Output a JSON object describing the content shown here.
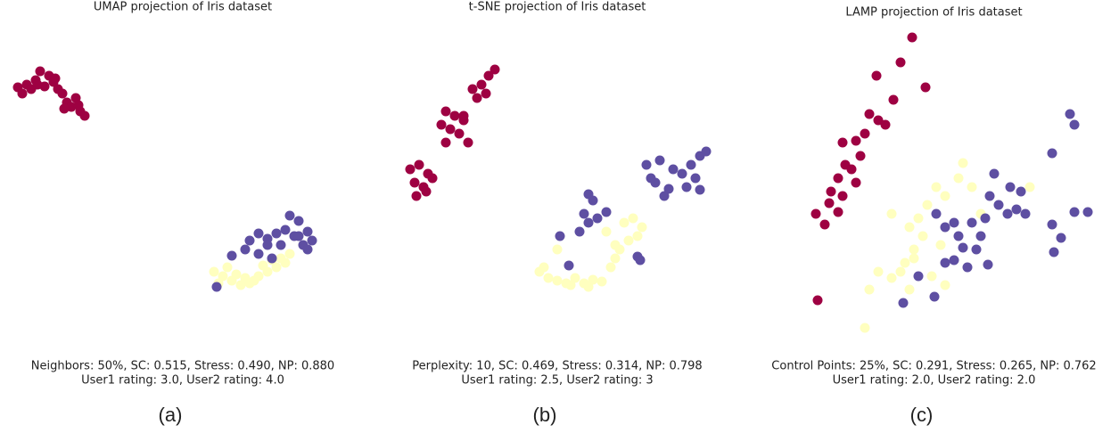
{
  "chart_data": [
    {
      "type": "scatter",
      "title": "UMAP projection of Iris dataset",
      "caption": [
        "Neighbors: 50%, SC: 0.515, Stress: 0.490, NP: 0.880",
        "User1 rating: 3.0, User2 rating: 4.0"
      ],
      "label": "(a)",
      "xlim": [
        0,
        410
      ],
      "ylim": [
        400,
        0
      ],
      "series": [
        {
          "color": "#9e0142",
          "x": [
            20,
            30,
            40,
            45,
            55,
            60,
            65,
            70,
            75,
            80,
            85,
            90,
            95,
            35,
            50,
            25,
            72,
            88,
            62,
            42
          ],
          "y": [
            98,
            95,
            90,
            80,
            85,
            92,
            100,
            105,
            115,
            120,
            110,
            125,
            130,
            100,
            97,
            105,
            122,
            118,
            88,
            95
          ]
        },
        {
          "color": "#ffffbf",
          "x": [
            240,
            250,
            260,
            270,
            280,
            290,
            300,
            310,
            320,
            325,
            315,
            255,
            265,
            285,
            245,
            295,
            305,
            275
          ],
          "y": [
            305,
            310,
            315,
            320,
            318,
            310,
            305,
            300,
            295,
            285,
            290,
            300,
            308,
            315,
            318,
            298,
            292,
            312
          ]
        },
        {
          "color": "#5e4fa2",
          "x": [
            325,
            335,
            345,
            350,
            340,
            330,
            320,
            310,
            300,
            290,
            280,
            275,
            290,
            305,
            315,
            335,
            345,
            260,
            243,
            300
          ],
          "y": [
            242,
            248,
            260,
            270,
            275,
            265,
            258,
            262,
            268,
            262,
            270,
            280,
            285,
            290,
            275,
            265,
            280,
            287,
            322,
            275
          ]
        }
      ]
    },
    {
      "type": "scatter",
      "title": "t-SNE projection of Iris dataset",
      "caption": [
        "Perplexity: 10, SC: 0.469, Stress: 0.314, NP: 0.798",
        "User1 rating: 2.5, User2 rating: 3"
      ],
      "label": "(b)",
      "xlim": [
        410,
        840
      ],
      "ylim": [
        400,
        0
      ],
      "series": [
        {
          "color": "#9e0142",
          "x": [
            555,
            548,
            540,
            545,
            535,
            530,
            500,
            510,
            520,
            505,
            515,
            500,
            525,
            495,
            460,
            470,
            480,
            465,
            475,
            485,
            467,
            478,
            520
          ],
          "y": [
            78,
            85,
            95,
            105,
            110,
            100,
            125,
            130,
            135,
            145,
            150,
            160,
            160,
            140,
            190,
            185,
            195,
            205,
            210,
            200,
            220,
            215,
            130
          ]
        },
        {
          "color": "#ffffbf",
          "x": [
            605,
            615,
            625,
            635,
            645,
            655,
            665,
            675,
            685,
            690,
            695,
            705,
            715,
            720,
            710,
            700,
            680,
            625,
            610,
            640,
            660,
            690
          ],
          "y": [
            305,
            312,
            315,
            318,
            312,
            318,
            314,
            316,
            300,
            290,
            280,
            270,
            265,
            255,
            245,
            250,
            260,
            280,
            300,
            320,
            322,
            275
          ]
        },
        {
          "color": "#5e4fa2",
          "x": [
            725,
            740,
            755,
            765,
            775,
            785,
            792,
            780,
            770,
            785,
            750,
            735,
            745,
            730,
            660,
            665,
            655,
            660,
            670,
            680,
            628,
            638,
            715,
            718,
            650
          ],
          "y": [
            185,
            180,
            190,
            195,
            185,
            175,
            170,
            200,
            210,
            213,
            212,
            205,
            220,
            200,
            218,
            225,
            240,
            250,
            245,
            238,
            265,
            298,
            288,
            292,
            260
          ]
        }
      ]
    },
    {
      "type": "scatter",
      "title": "LAMP projection of Iris dataset",
      "caption": [
        "Control Points: 25%, SC: 0.291, Stress: 0.265, NP: 0.762",
        "User1 rating: 2.0, User2 rating: 2.0"
      ],
      "label": "(c)",
      "xlim": [
        840,
        1255
      ],
      "ylim": [
        400,
        0
      ],
      "series": [
        {
          "color": "#9e0142",
          "x": [
            1023,
            1010,
            983,
            1038,
            1002,
            975,
            985,
            993,
            970,
            960,
            945,
            965,
            948,
            955,
            940,
            932,
            945,
            930,
            940,
            915,
            925,
            960,
            917
          ],
          "y": [
            42,
            70,
            85,
            98,
            112,
            128,
            135,
            140,
            150,
            158,
            160,
            175,
            185,
            190,
            200,
            215,
            220,
            228,
            238,
            240,
            252,
            205,
            337
          ]
        },
        {
          "color": "#ffffbf",
          "x": [
            1080,
            1075,
            1050,
            1060,
            1040,
            1030,
            1020,
            1035,
            1025,
            1015,
            1010,
            1000,
            985,
            975,
            1020,
            1045,
            1060,
            1025,
            1000,
            970,
            1090,
            1100,
            1155,
            1055
          ],
          "y": [
            183,
            200,
            210,
            220,
            230,
            245,
            255,
            265,
            280,
            295,
            305,
            312,
            305,
            325,
            325,
            310,
            320,
            290,
            240,
            368,
            210,
            240,
            210,
            275
          ]
        },
        {
          "color": "#5e4fa2",
          "x": [
            1200,
            1205,
            1180,
            1115,
            1133,
            1145,
            1110,
            1120,
            1130,
            1140,
            1150,
            1105,
            1090,
            1070,
            1050,
            1060,
            1075,
            1080,
            1100,
            1095,
            1060,
            1070,
            1085,
            1108,
            1030,
            1048,
            1013,
            1180,
            1190,
            1182,
            1205,
            1220
          ],
          "y": [
            128,
            140,
            172,
            195,
            210,
            215,
            220,
            230,
            240,
            235,
            240,
            245,
            250,
            250,
            240,
            255,
            265,
            278,
            265,
            280,
            295,
            292,
            300,
            297,
            310,
            333,
            340,
            252,
            267,
            283,
            238,
            238
          ]
        }
      ]
    }
  ]
}
